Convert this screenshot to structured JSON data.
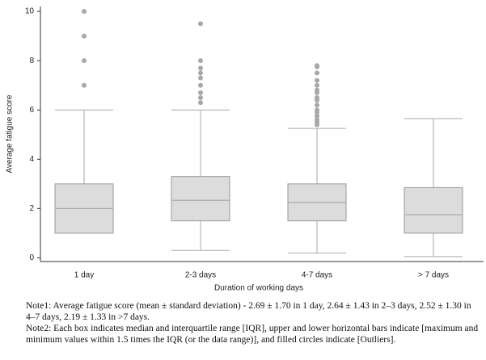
{
  "chart_data": {
    "type": "box",
    "y_label": "Average fatigue score",
    "x_label": "Duration of working days",
    "categories": [
      "1 day",
      "2-3 days",
      "4-7 days",
      "> 7 days"
    ],
    "color": "#dcdcdc",
    "boxes": [
      {
        "whisker_low": 1.0,
        "q1": 1.0,
        "median": 2.0,
        "q3": 3.0,
        "whisker_high": 6.0,
        "outliers": [
          7,
          8,
          9,
          10
        ]
      },
      {
        "whisker_low": 0.3,
        "q1": 1.5,
        "median": 2.33,
        "q3": 3.3,
        "whisker_high": 6.0,
        "outliers": [
          6.3,
          6.5,
          6.7,
          7.0,
          7.3,
          7.5,
          7.7,
          8.0,
          9.5
        ]
      },
      {
        "whisker_low": 0.2,
        "q1": 1.5,
        "median": 2.25,
        "q3": 3.0,
        "whisker_high": 5.25,
        "outliers": [
          5.4,
          5.5,
          5.6,
          5.75,
          5.9,
          6.0,
          6.2,
          6.4,
          6.5,
          6.7,
          6.8,
          7.0,
          7.2,
          7.5,
          7.75,
          7.8
        ]
      },
      {
        "whisker_low": 0.05,
        "q1": 1.0,
        "median": 1.75,
        "q3": 2.85,
        "whisker_high": 5.65,
        "outliers": []
      }
    ],
    "ylim": [
      -0.15,
      10.2
    ],
    "yticks": [
      0,
      2,
      4,
      6,
      8,
      10
    ]
  },
  "notes": [
    "Note1: Average fatigue score (mean ± standard deviation) - 2.69 ± 1.70 in 1 day, 2.64 ± 1.43 in 2–3 days, 2.52 ± 1.30 in 4–7 days, 2.19 ± 1.33 in >7 days.",
    "Note2: Each box indicates median and interquartile range [IQR], upper and lower horizontal bars indicate [maximum and minimum values within 1.5 times the IQR (or the data range)], and filled circles indicate [Outliers]."
  ]
}
